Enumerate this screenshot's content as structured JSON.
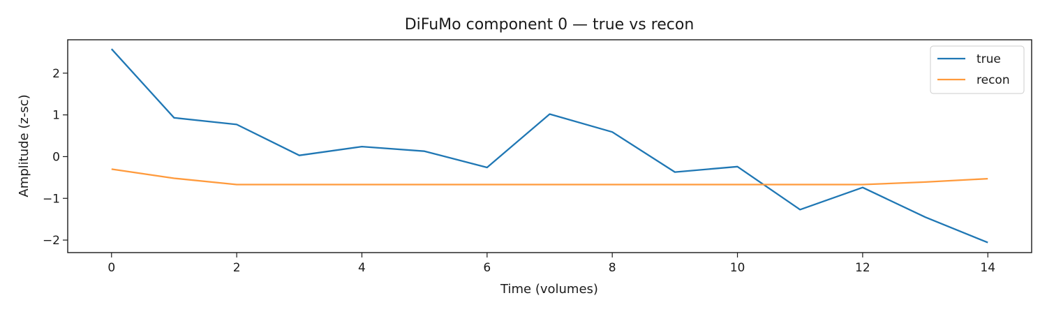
{
  "chart_data": {
    "type": "line",
    "title": "DiFuMo component 0 — true vs recon",
    "xlabel": "Time (volumes)",
    "ylabel": "Amplitude (z-sc)",
    "xlim": [
      -0.7,
      14.7
    ],
    "ylim": [
      -2.3,
      2.8
    ],
    "xticks": [
      0,
      2,
      4,
      6,
      8,
      10,
      12,
      14
    ],
    "yticks": [
      2,
      1,
      0,
      -1,
      -2
    ],
    "xtick_labels": [
      "0",
      "2",
      "4",
      "6",
      "8",
      "10",
      "12",
      "14"
    ],
    "ytick_labels": [
      "2",
      "1",
      "0",
      "−1",
      "−2"
    ],
    "grid": false,
    "legend": "top-right",
    "x": [
      0,
      1,
      2,
      3,
      4,
      5,
      6,
      7,
      8,
      9,
      10,
      11,
      12,
      13,
      14
    ],
    "series": [
      {
        "name": "true",
        "color": "#1f77b4",
        "values": [
          2.58,
          0.93,
          0.77,
          0.03,
          0.24,
          0.13,
          -0.26,
          1.02,
          0.59,
          -0.37,
          -0.24,
          -1.27,
          -0.74,
          -1.45,
          -2.06
        ]
      },
      {
        "name": "recon",
        "color": "#ff9a3c",
        "values": [
          -0.3,
          -0.52,
          -0.67,
          -0.67,
          -0.67,
          -0.67,
          -0.67,
          -0.67,
          -0.67,
          -0.67,
          -0.67,
          -0.67,
          -0.67,
          -0.61,
          -0.53
        ]
      }
    ]
  }
}
